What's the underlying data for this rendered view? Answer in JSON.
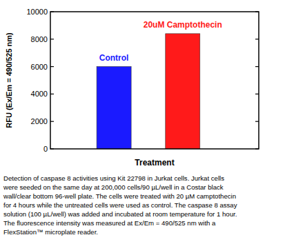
{
  "chart_data": {
    "type": "bar",
    "categories": [
      "Control",
      "20uM Camptothecin"
    ],
    "values": [
      6000,
      8400
    ],
    "colors": [
      "#1a1aff",
      "#ff1a1a"
    ],
    "ylim": [
      0,
      10000
    ],
    "yticks": [
      0,
      2000,
      4000,
      6000,
      8000,
      10000
    ],
    "y_label": "RFU (Ex/Em = 490/525 nm)",
    "x_label": "Treatment",
    "tick_labels": "y",
    "grid": false,
    "caption": [
      "Detection of caspase 8 activities using Kit 22798 in Jurkat cells. Jurkat cells",
      "were seeded on the same day at 200,000 cells/90 µL/well in a Costar black",
      "wall/clear bottom 96-well plate. The cells were treated with 20 µM camptothecin",
      "for 4 hours while the untreated cells were used as control. The caspase 8 assay",
      "solution (100 µL/well) was added and incubated at room temperature for 1 hour.",
      "The fluorescence intensity was measured at Ex/Em = 490/525 nm with a",
      "FlexStation™ microplate reader."
    ]
  }
}
